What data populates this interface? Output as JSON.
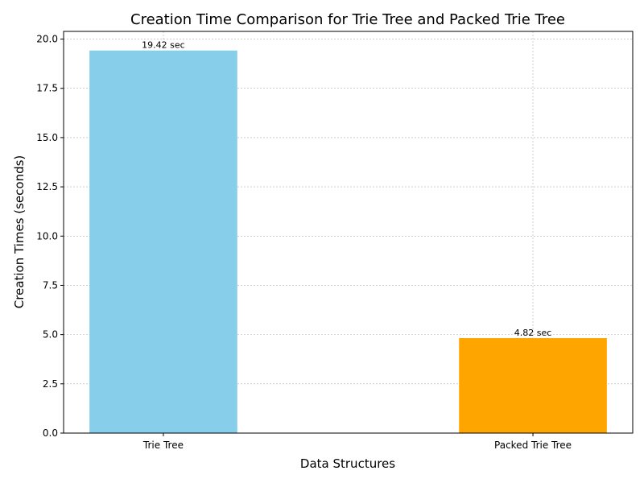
{
  "chart_data": {
    "type": "bar",
    "title": "Creation Time Comparison for Trie Tree and Packed Trie Tree",
    "xlabel": "Data Structures",
    "ylabel": "Creation Times (seconds)",
    "categories": [
      "Trie Tree",
      "Packed Trie Tree"
    ],
    "values": [
      19.42,
      4.82
    ],
    "data_labels": [
      "19.42 sec",
      "4.82 sec"
    ],
    "colors": [
      "#87CEEB",
      "#FFA500"
    ],
    "ylim": [
      0,
      20.39
    ],
    "yticks": [
      0,
      2.5,
      5,
      7.5,
      10,
      12.5,
      15,
      17.5,
      20
    ],
    "ytick_labels": [
      "0.0",
      "2.5",
      "5.0",
      "7.5",
      "10.0",
      "12.5",
      "15.0",
      "17.5",
      "20.0"
    ],
    "grid": true,
    "legend": "none"
  }
}
